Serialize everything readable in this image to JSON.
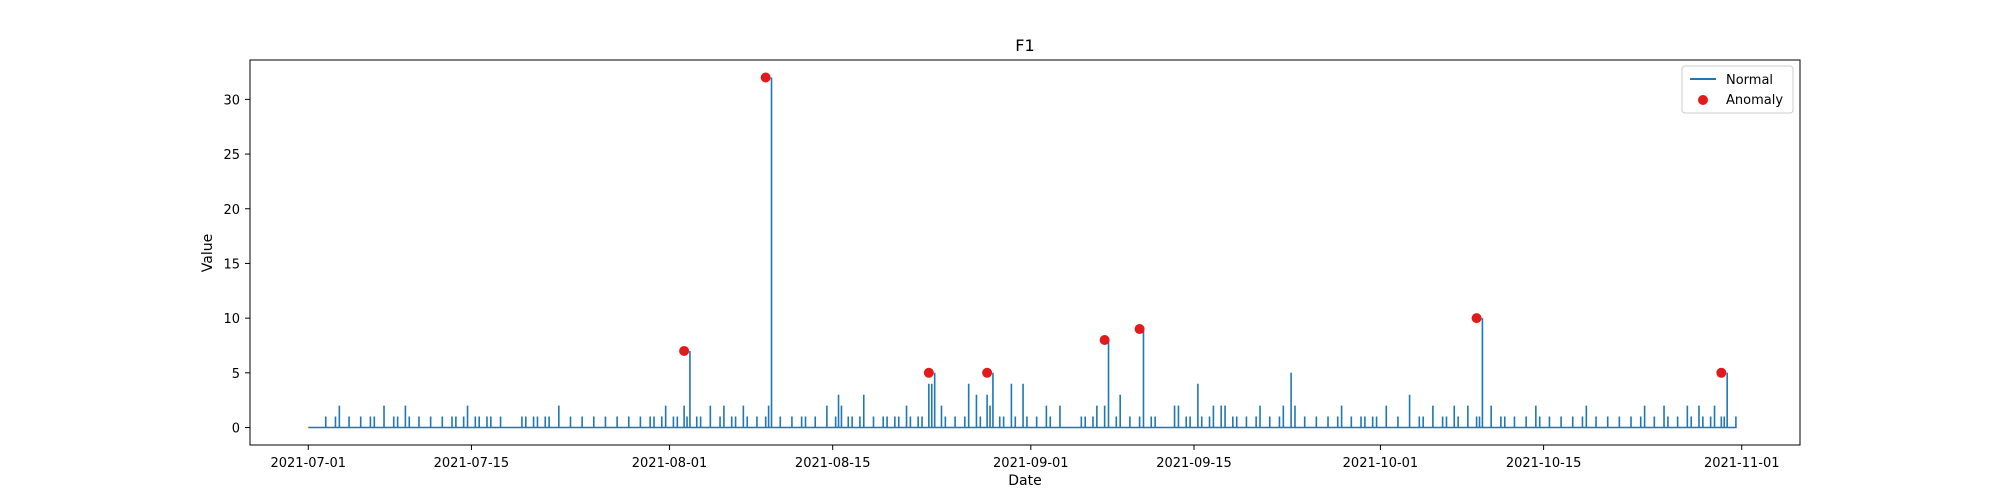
{
  "chart_data": {
    "type": "line",
    "title": "F1",
    "xlabel": "Date",
    "ylabel": "Value",
    "x_tick_labels": [
      "2021-07-01",
      "2021-07-15",
      "2021-08-01",
      "2021-08-15",
      "2021-09-01",
      "2021-09-15",
      "2021-10-01",
      "2021-10-15",
      "2021-11-01"
    ],
    "y_tick_labels": [
      "0",
      "5",
      "10",
      "15",
      "20",
      "25",
      "30"
    ],
    "x_range": [
      "2021-06-26",
      "2021-11-06"
    ],
    "ylim": [
      -1.6,
      33.6
    ],
    "grid": false,
    "legend_position": "top-right",
    "colors": {
      "normal": "#1f77b4",
      "anomaly": "#e31a1c",
      "axes": "#000000"
    },
    "series": [
      {
        "name": "Normal",
        "type": "line",
        "date_range": [
          "2021-07-01",
          "2021-10-31"
        ],
        "baseline": 0,
        "nonzero_points": [
          [
            "2021-07-02",
            1
          ],
          [
            "2021-07-03",
            1
          ],
          [
            "2021-07-03",
            2
          ],
          [
            "2021-07-04",
            1
          ],
          [
            "2021-07-05",
            1
          ],
          [
            "2021-07-06",
            1
          ],
          [
            "2021-07-06",
            1
          ],
          [
            "2021-07-07",
            2
          ],
          [
            "2021-07-08",
            1
          ],
          [
            "2021-07-08",
            1
          ],
          [
            "2021-07-09",
            2
          ],
          [
            "2021-07-09",
            1
          ],
          [
            "2021-07-10",
            1
          ],
          [
            "2021-07-11",
            1
          ],
          [
            "2021-07-12",
            1
          ],
          [
            "2021-07-13",
            1
          ],
          [
            "2021-07-13",
            1
          ],
          [
            "2021-07-14",
            1
          ],
          [
            "2021-07-14",
            2
          ],
          [
            "2021-07-15",
            1
          ],
          [
            "2021-07-15",
            1
          ],
          [
            "2021-07-16",
            1
          ],
          [
            "2021-07-16",
            1
          ],
          [
            "2021-07-17",
            1
          ],
          [
            "2021-07-19",
            1
          ],
          [
            "2021-07-19",
            1
          ],
          [
            "2021-07-20",
            1
          ],
          [
            "2021-07-20",
            1
          ],
          [
            "2021-07-21",
            1
          ],
          [
            "2021-07-21",
            1
          ],
          [
            "2021-07-22",
            2
          ],
          [
            "2021-07-23",
            1
          ],
          [
            "2021-07-24",
            1
          ],
          [
            "2021-07-25",
            1
          ],
          [
            "2021-07-26",
            1
          ],
          [
            "2021-07-27",
            1
          ],
          [
            "2021-07-28",
            1
          ],
          [
            "2021-07-29",
            1
          ],
          [
            "2021-07-30",
            1
          ],
          [
            "2021-07-30",
            1
          ],
          [
            "2021-07-31",
            1
          ],
          [
            "2021-07-31",
            2
          ],
          [
            "2021-08-01",
            1
          ],
          [
            "2021-08-01",
            1
          ],
          [
            "2021-08-02",
            2
          ],
          [
            "2021-08-02",
            1
          ],
          [
            "2021-08-03",
            1
          ],
          [
            "2021-08-03",
            1
          ],
          [
            "2021-08-04",
            2
          ],
          [
            "2021-08-05",
            1
          ],
          [
            "2021-08-05",
            2
          ],
          [
            "2021-08-06",
            1
          ],
          [
            "2021-08-06",
            1
          ],
          [
            "2021-08-07",
            2
          ],
          [
            "2021-08-07",
            1
          ],
          [
            "2021-08-08",
            1
          ],
          [
            "2021-08-09",
            1
          ],
          [
            "2021-08-09",
            2
          ],
          [
            "2021-08-10",
            1
          ],
          [
            "2021-08-11",
            1
          ],
          [
            "2021-08-12",
            1
          ],
          [
            "2021-08-12",
            1
          ],
          [
            "2021-08-13",
            1
          ],
          [
            "2021-08-14",
            2
          ],
          [
            "2021-08-15",
            1
          ],
          [
            "2021-08-15",
            3
          ],
          [
            "2021-08-15",
            2
          ],
          [
            "2021-08-16",
            1
          ],
          [
            "2021-08-16",
            1
          ],
          [
            "2021-08-17",
            1
          ],
          [
            "2021-08-17",
            3
          ],
          [
            "2021-08-18",
            1
          ],
          [
            "2021-08-19",
            1
          ],
          [
            "2021-08-19",
            1
          ],
          [
            "2021-08-20",
            1
          ],
          [
            "2021-08-20",
            1
          ],
          [
            "2021-08-21",
            2
          ],
          [
            "2021-08-21",
            1
          ],
          [
            "2021-08-22",
            1
          ],
          [
            "2021-08-22",
            1
          ],
          [
            "2021-08-23",
            4
          ],
          [
            "2021-08-23",
            4
          ],
          [
            "2021-08-24",
            2
          ],
          [
            "2021-08-24",
            1
          ],
          [
            "2021-08-25",
            1
          ],
          [
            "2021-08-26",
            1
          ],
          [
            "2021-08-26",
            4
          ],
          [
            "2021-08-27",
            3
          ],
          [
            "2021-08-27",
            1
          ],
          [
            "2021-08-28",
            3
          ],
          [
            "2021-08-28",
            2
          ],
          [
            "2021-08-29",
            1
          ],
          [
            "2021-08-29",
            1
          ],
          [
            "2021-08-30",
            4
          ],
          [
            "2021-08-30",
            1
          ],
          [
            "2021-08-31",
            4
          ],
          [
            "2021-08-31",
            1
          ],
          [
            "2021-09-01",
            1
          ],
          [
            "2021-09-02",
            2
          ],
          [
            "2021-09-02",
            1
          ],
          [
            "2021-09-03",
            2
          ],
          [
            "2021-09-05",
            1
          ],
          [
            "2021-09-05",
            1
          ],
          [
            "2021-09-06",
            1
          ],
          [
            "2021-09-06",
            2
          ],
          [
            "2021-09-07",
            2
          ],
          [
            "2021-09-08",
            1
          ],
          [
            "2021-09-08",
            3
          ],
          [
            "2021-09-09",
            1
          ],
          [
            "2021-09-10",
            1
          ],
          [
            "2021-09-11",
            1
          ],
          [
            "2021-09-11",
            1
          ],
          [
            "2021-09-13",
            2
          ],
          [
            "2021-09-13",
            2
          ],
          [
            "2021-09-14",
            1
          ],
          [
            "2021-09-14",
            1
          ],
          [
            "2021-09-15",
            4
          ],
          [
            "2021-09-15",
            1
          ],
          [
            "2021-09-16",
            1
          ],
          [
            "2021-09-16",
            2
          ],
          [
            "2021-09-17",
            2
          ],
          [
            "2021-09-17",
            2
          ],
          [
            "2021-09-18",
            1
          ],
          [
            "2021-09-18",
            1
          ],
          [
            "2021-09-19",
            1
          ],
          [
            "2021-09-20",
            1
          ],
          [
            "2021-09-20",
            2
          ],
          [
            "2021-09-21",
            1
          ],
          [
            "2021-09-22",
            1
          ],
          [
            "2021-09-22",
            2
          ],
          [
            "2021-09-23",
            5
          ],
          [
            "2021-09-23",
            2
          ],
          [
            "2021-09-24",
            1
          ],
          [
            "2021-09-25",
            1
          ],
          [
            "2021-09-26",
            1
          ],
          [
            "2021-09-27",
            1
          ],
          [
            "2021-09-27",
            2
          ],
          [
            "2021-09-28",
            1
          ],
          [
            "2021-09-29",
            1
          ],
          [
            "2021-09-29",
            1
          ],
          [
            "2021-09-30",
            1
          ],
          [
            "2021-09-30",
            1
          ],
          [
            "2021-10-01",
            2
          ],
          [
            "2021-10-02",
            1
          ],
          [
            "2021-10-03",
            3
          ],
          [
            "2021-10-04",
            1
          ],
          [
            "2021-10-04",
            1
          ],
          [
            "2021-10-05",
            2
          ],
          [
            "2021-10-06",
            1
          ],
          [
            "2021-10-06",
            1
          ],
          [
            "2021-10-07",
            2
          ],
          [
            "2021-10-07",
            1
          ],
          [
            "2021-10-08",
            2
          ],
          [
            "2021-10-09",
            1
          ],
          [
            "2021-10-09",
            1
          ],
          [
            "2021-10-10",
            2
          ],
          [
            "2021-10-11",
            1
          ],
          [
            "2021-10-11",
            1
          ],
          [
            "2021-10-12",
            1
          ],
          [
            "2021-10-13",
            1
          ],
          [
            "2021-10-14",
            2
          ],
          [
            "2021-10-14",
            1
          ],
          [
            "2021-10-15",
            1
          ],
          [
            "2021-10-16",
            1
          ],
          [
            "2021-10-17",
            1
          ],
          [
            "2021-10-18",
            1
          ],
          [
            "2021-10-18",
            2
          ],
          [
            "2021-10-19",
            1
          ],
          [
            "2021-10-20",
            1
          ],
          [
            "2021-10-21",
            1
          ],
          [
            "2021-10-22",
            1
          ],
          [
            "2021-10-23",
            1
          ],
          [
            "2021-10-23",
            2
          ],
          [
            "2021-10-24",
            1
          ],
          [
            "2021-10-25",
            2
          ],
          [
            "2021-10-25",
            1
          ],
          [
            "2021-10-26",
            1
          ],
          [
            "2021-10-27",
            2
          ],
          [
            "2021-10-27",
            1
          ],
          [
            "2021-10-28",
            2
          ],
          [
            "2021-10-28",
            1
          ],
          [
            "2021-10-29",
            1
          ],
          [
            "2021-10-29",
            2
          ],
          [
            "2021-10-30",
            1
          ],
          [
            "2021-10-30",
            1
          ],
          [
            "2021-10-31",
            1
          ]
        ]
      },
      {
        "name": "Anomaly",
        "type": "scatter",
        "points": [
          [
            "2021-08-02",
            7
          ],
          [
            "2021-08-09",
            32
          ],
          [
            "2021-08-23",
            5
          ],
          [
            "2021-08-28",
            5
          ],
          [
            "2021-09-07",
            8
          ],
          [
            "2021-09-10",
            9
          ],
          [
            "2021-10-09",
            10
          ],
          [
            "2021-10-30",
            5
          ]
        ]
      }
    ]
  }
}
